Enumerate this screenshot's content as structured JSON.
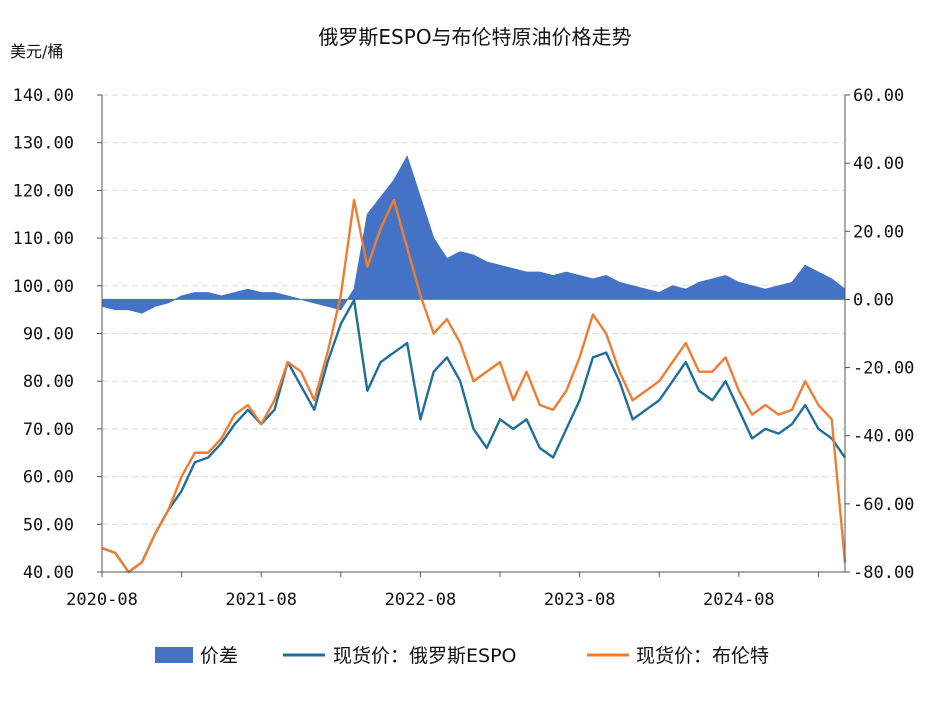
{
  "chart_data": {
    "type": "line",
    "title": "俄罗斯ESPO与布伦特原油价格走势",
    "ylabel": "美元/桶",
    "x_tick_labels": [
      "2020-08",
      "2021-08",
      "2022-08",
      "2023-08",
      "2024-08"
    ],
    "ylim_left": [
      40,
      140
    ],
    "y_ticks_left": [
      "40.00",
      "50.00",
      "60.00",
      "70.00",
      "80.00",
      "90.00",
      "100.00",
      "110.00",
      "120.00",
      "130.00",
      "140.00"
    ],
    "ylim_right": [
      -80,
      60
    ],
    "y_ticks_right": [
      "-80.00",
      "-60.00",
      "-40.00",
      "-20.00",
      "0.00",
      "20.00",
      "40.00",
      "60.00"
    ],
    "grid": "horizontal dashed",
    "legend_position": "bottom",
    "x": [
      "2020-08",
      "2020-09",
      "2020-10",
      "2020-11",
      "2020-12",
      "2021-01",
      "2021-02",
      "2021-03",
      "2021-04",
      "2021-05",
      "2021-06",
      "2021-07",
      "2021-08",
      "2021-09",
      "2021-10",
      "2021-11",
      "2021-12",
      "2022-01",
      "2022-02",
      "2022-03",
      "2022-04",
      "2022-05",
      "2022-06",
      "2022-07",
      "2022-08",
      "2022-09",
      "2022-10",
      "2022-11",
      "2022-12",
      "2023-01",
      "2023-02",
      "2023-03",
      "2023-04",
      "2023-05",
      "2023-06",
      "2023-07",
      "2023-08",
      "2023-09",
      "2023-10",
      "2023-11",
      "2023-12",
      "2024-01",
      "2024-02",
      "2024-03",
      "2024-04",
      "2024-05",
      "2024-06",
      "2024-07",
      "2024-08",
      "2024-09",
      "2024-10",
      "2024-11",
      "2024-12",
      "2025-01",
      "2025-02",
      "2025-03",
      "2025-04"
    ],
    "series": [
      {
        "name": "价差",
        "axis": "right",
        "kind": "area",
        "color": "#4472C4",
        "values": [
          -2,
          -3,
          -3,
          -4,
          -2,
          -1,
          1,
          2,
          2,
          1,
          2,
          3,
          2,
          2,
          1,
          0,
          -1,
          -2,
          -3,
          3,
          25,
          30,
          35,
          42,
          30,
          18,
          12,
          14,
          13,
          11,
          10,
          9,
          8,
          8,
          7,
          8,
          7,
          6,
          7,
          5,
          4,
          3,
          2,
          4,
          3,
          5,
          6,
          7,
          5,
          4,
          3,
          4,
          5,
          10,
          8,
          6,
          3
        ]
      },
      {
        "name": "现货价：俄罗斯ESPO",
        "axis": "left",
        "kind": "line",
        "color": "#1F6F9A",
        "values": [
          45,
          44,
          40,
          42,
          48,
          53,
          57,
          63,
          64,
          67,
          71,
          74,
          71,
          74,
          84,
          79,
          74,
          84,
          92,
          97,
          78,
          84,
          86,
          88,
          72,
          82,
          85,
          80,
          70,
          66,
          72,
          70,
          72,
          66,
          64,
          70,
          76,
          85,
          86,
          80,
          72,
          74,
          76,
          80,
          84,
          78,
          76,
          80,
          74,
          68,
          70,
          69,
          71,
          75,
          70,
          68,
          64
        ]
      },
      {
        "name": "现货价：布伦特",
        "axis": "left",
        "kind": "line",
        "color": "#ED7D31",
        "values": [
          45,
          44,
          40,
          42,
          48,
          53,
          60,
          65,
          65,
          68,
          73,
          75,
          71,
          76,
          84,
          82,
          76,
          86,
          98,
          118,
          104,
          112,
          118,
          108,
          98,
          90,
          93,
          88,
          80,
          82,
          84,
          76,
          82,
          75,
          74,
          78,
          85,
          94,
          90,
          82,
          76,
          78,
          80,
          84,
          88,
          82,
          82,
          85,
          78,
          73,
          75,
          73,
          74,
          80,
          75,
          72,
          42
        ]
      }
    ]
  },
  "legend": [
    {
      "label": "价差",
      "swatch": "bar",
      "color": "#4472C4"
    },
    {
      "label": "现货价：俄罗斯ESPO",
      "swatch": "line",
      "color": "#1F6F9A"
    },
    {
      "label": "现货价：布伦特",
      "swatch": "line",
      "color": "#ED7D31"
    }
  ]
}
